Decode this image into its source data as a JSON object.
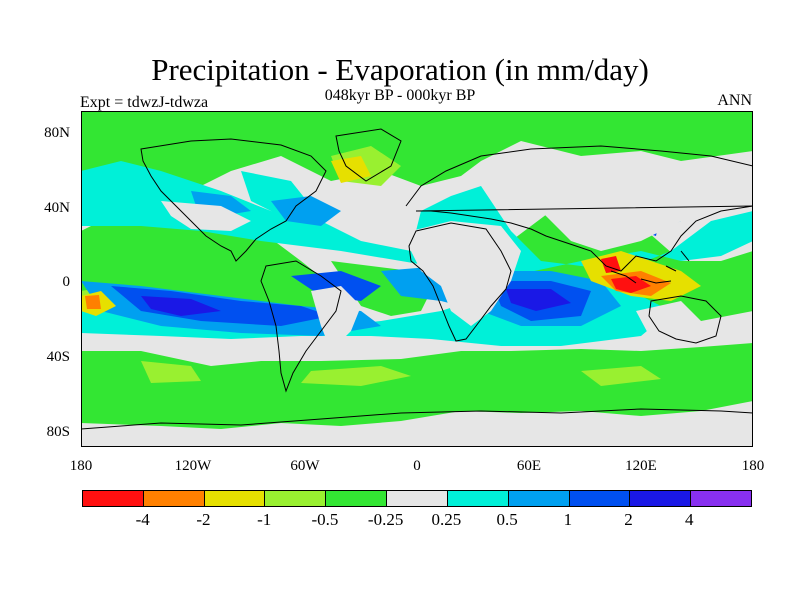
{
  "title": "Precipitation - Evaporation (in mm/day)",
  "subtitle": "048kyr BP - 000kyr BP",
  "left_label": "Expt = tdwzJ-tdwza",
  "right_label": "ANN",
  "map": {
    "projection": "cylindrical equidistant",
    "lon_range": [
      -180,
      180
    ],
    "lat_range": [
      -90,
      90
    ],
    "background_color": "#e6e6e6",
    "coastline_color": "#000000"
  },
  "y_ticks": [
    "80N",
    "40N",
    "0",
    "40S",
    "80S"
  ],
  "x_ticks": [
    "180",
    "120W",
    "60W",
    "0",
    "60E",
    "120E",
    "180"
  ],
  "colorbar": {
    "colors": [
      "#ff1010",
      "#ff8000",
      "#e6e000",
      "#99f030",
      "#33e633",
      "#e6e6e6",
      "#00f0d8",
      "#00a0f0",
      "#0050f0",
      "#1a18e6",
      "#8830f0"
    ],
    "labels": [
      "-4",
      "-2",
      "-1",
      "-0.5",
      "-0.25",
      "0.25",
      "0.5",
      "1",
      "2",
      "4"
    ]
  }
}
